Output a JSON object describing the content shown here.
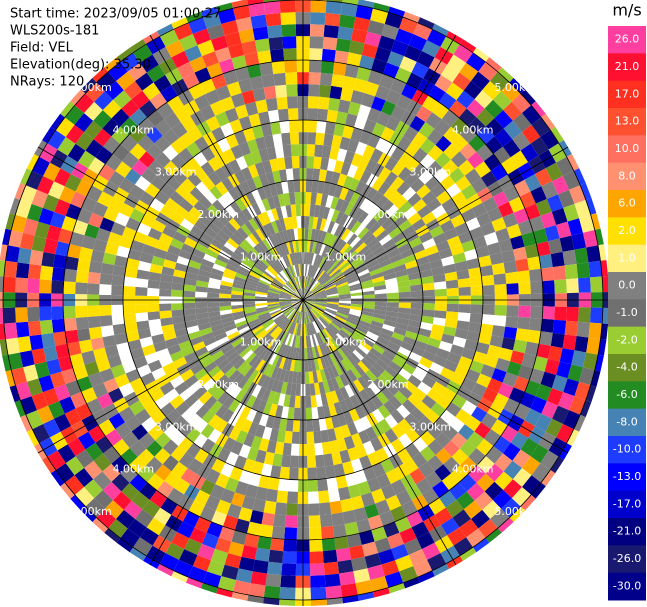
{
  "chart_data": {
    "type": "ppi",
    "info": [
      "Start time: 2023/09/05 01:00:27",
      "WLS200s-181",
      "Field: VEL",
      "Elevation(deg): 35.30",
      "NRays: 120"
    ],
    "range_rings": [
      {
        "value": 1,
        "label": "1.00km"
      },
      {
        "value": 2,
        "label": "2.00km"
      },
      {
        "value": 3,
        "label": "3.00km"
      },
      {
        "value": 4,
        "label": "4.00km"
      },
      {
        "value": 5,
        "label": "5.00km"
      }
    ],
    "rlim": [
      0,
      5.1
    ],
    "colorbar": {
      "label": "m/s",
      "ticks": [
        {
          "value": 26,
          "label": "26.0"
        },
        {
          "value": 21,
          "label": "21.0"
        },
        {
          "value": 17,
          "label": "17.0"
        },
        {
          "value": 13,
          "label": "13.0"
        },
        {
          "value": 10,
          "label": "10.0"
        },
        {
          "value": 8,
          "label": "8.0"
        },
        {
          "value": 6,
          "label": "6.0"
        },
        {
          "value": 2,
          "label": "2.0"
        },
        {
          "value": 1,
          "label": "1.0"
        },
        {
          "value": 0,
          "label": "0.0"
        },
        {
          "value": -1,
          "label": "-1.0"
        },
        {
          "value": -2,
          "label": "-2.0"
        },
        {
          "value": -4,
          "label": "-4.0"
        },
        {
          "value": -6,
          "label": "-6.0"
        },
        {
          "value": -8,
          "label": "-8.0"
        },
        {
          "value": -10,
          "label": "-10.0"
        },
        {
          "value": -13,
          "label": "-13.0"
        },
        {
          "value": -17,
          "label": "-17.0"
        },
        {
          "value": -21,
          "label": "-21.0"
        },
        {
          "value": -26,
          "label": "-26.0"
        },
        {
          "value": -30,
          "label": "-30.0"
        }
      ],
      "colors": [
        "#ff3fa0",
        "#ff1030",
        "#ff3020",
        "#ff5030",
        "#ff7060",
        "#ff9070",
        "#ffa500",
        "#ffe000",
        "#fff080",
        "#808080",
        "#707070",
        "#9acd32",
        "#6b8e23",
        "#228b22",
        "#4682b4",
        "#1e3cff",
        "#0000ff",
        "#0000cd",
        "#000080",
        "#191970",
        "#00008b"
      ]
    }
  }
}
